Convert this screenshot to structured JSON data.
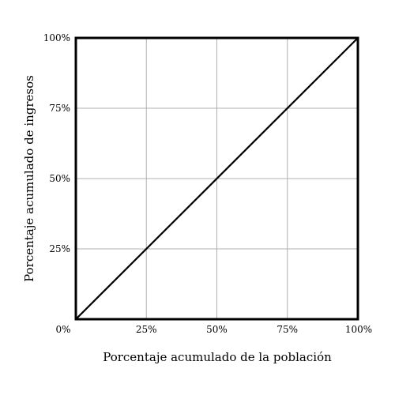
{
  "chart_data": {
    "type": "line",
    "title": "",
    "xlabel": "Porcentaje acumulado de la población",
    "ylabel": "Porcentaje acumulado de ingresos",
    "xlim": [
      0,
      100
    ],
    "ylim": [
      0,
      100
    ],
    "grid": true,
    "x_ticks": [
      0,
      25,
      50,
      75,
      100
    ],
    "y_ticks": [
      25,
      50,
      75,
      100
    ],
    "x_tick_labels": [
      "0%",
      "25%",
      "50%",
      "75%",
      "100%"
    ],
    "y_tick_labels": [
      "25%",
      "50%",
      "75%",
      "100%"
    ],
    "series": [
      {
        "x": [
          0,
          100
        ],
        "y": [
          0,
          100
        ],
        "color": "#000000"
      }
    ],
    "colors": {
      "line": "#000000",
      "grid": "#b0b0b0",
      "frame": "#000000",
      "background": "#ffffff"
    }
  }
}
